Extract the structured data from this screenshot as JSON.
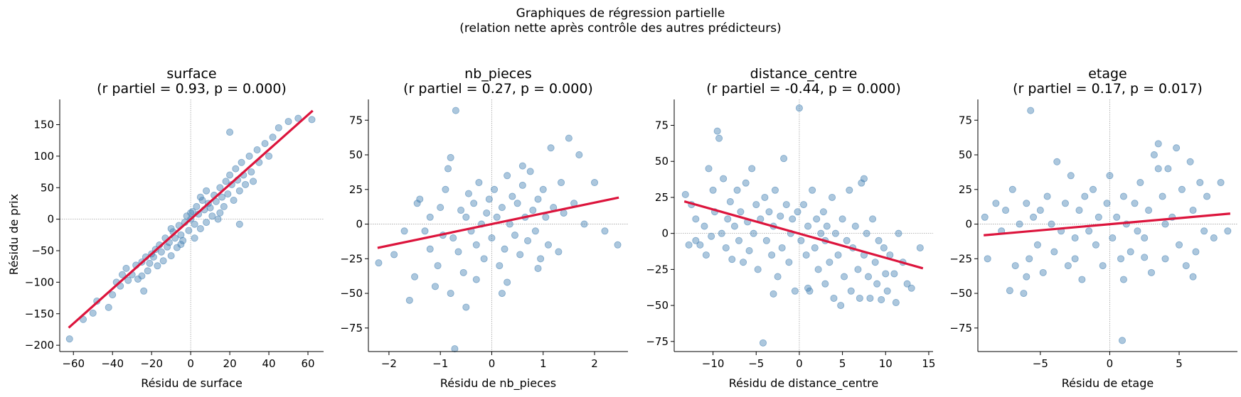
{
  "figure": {
    "suptitle_line1": "Graphiques de régression partielle",
    "suptitle_line2": "(relation nette après contrôle des autres prédicteurs)"
  },
  "colors": {
    "points": "#4682b4",
    "fit_line": "#dc143c",
    "reference_lines": "#a0a0a0"
  },
  "chart_data": [
    {
      "type": "scatter",
      "title": "surface",
      "subtitle": "(r partiel = 0.93, p = 0.000)",
      "xlabel": "Résidu de surface",
      "ylabel": "Résidu de prix",
      "xlim": [
        -67,
        68
      ],
      "ylim": [
        -210,
        190
      ],
      "xticks": [
        -60,
        -40,
        -20,
        0,
        20,
        40,
        60
      ],
      "yticks": [
        -200,
        -150,
        -100,
        -50,
        0,
        50,
        100,
        150
      ],
      "fit": {
        "x": [
          -62,
          62
        ],
        "y": [
          -171,
          171
        ]
      },
      "points": [
        [
          -62,
          -190
        ],
        [
          -55,
          -159
        ],
        [
          -50,
          -149
        ],
        [
          -42,
          -140
        ],
        [
          -40,
          -120
        ],
        [
          -38,
          -100
        ],
        [
          -36,
          -106
        ],
        [
          -35,
          -88
        ],
        [
          -33,
          -78
        ],
        [
          -32,
          -97
        ],
        [
          -30,
          -88
        ],
        [
          -28,
          -73
        ],
        [
          -27,
          -95
        ],
        [
          -25,
          -68
        ],
        [
          -24,
          -114
        ],
        [
          -23,
          -60
        ],
        [
          -22,
          -82
        ],
        [
          -21,
          -70
        ],
        [
          -20,
          -55
        ],
        [
          -19,
          -60
        ],
        [
          -18,
          -48
        ],
        [
          -17,
          -74
        ],
        [
          -16,
          -41
        ],
        [
          -15,
          -52
        ],
        [
          -14,
          -66
        ],
        [
          -13,
          -30
        ],
        [
          -12,
          -44
        ],
        [
          -11,
          -37
        ],
        [
          -10,
          -58
        ],
        [
          -9,
          -20
        ],
        [
          -8,
          -30
        ],
        [
          -7,
          -45
        ],
        [
          -6,
          -10
        ],
        [
          -5,
          -25
        ],
        [
          -4,
          -34
        ],
        [
          -3,
          -5
        ],
        [
          -2,
          5
        ],
        [
          -1,
          -18
        ],
        [
          0,
          0
        ],
        [
          1,
          12
        ],
        [
          2,
          -8
        ],
        [
          3,
          20
        ],
        [
          4,
          8
        ],
        [
          5,
          -15
        ],
        [
          6,
          30
        ],
        [
          7,
          15
        ],
        [
          8,
          45
        ],
        [
          9,
          25
        ],
        [
          10,
          18
        ],
        [
          11,
          5
        ],
        [
          12,
          38
        ],
        [
          13,
          28
        ],
        [
          14,
          0
        ],
        [
          15,
          50
        ],
        [
          16,
          35
        ],
        [
          17,
          20
        ],
        [
          18,
          60
        ],
        [
          19,
          40
        ],
        [
          20,
          70
        ],
        [
          21,
          55
        ],
        [
          22,
          30
        ],
        [
          23,
          80
        ],
        [
          24,
          62
        ],
        [
          25,
          45
        ],
        [
          26,
          90
        ],
        [
          27,
          70
        ],
        [
          28,
          55
        ],
        [
          30,
          100
        ],
        [
          31,
          75
        ],
        [
          32,
          60
        ],
        [
          34,
          110
        ],
        [
          35,
          90
        ],
        [
          38,
          120
        ],
        [
          40,
          100
        ],
        [
          42,
          130
        ],
        [
          45,
          145
        ],
        [
          50,
          155
        ],
        [
          55,
          160
        ],
        [
          62,
          158
        ],
        [
          20,
          138
        ],
        [
          -48,
          -130
        ],
        [
          -5,
          -40
        ],
        [
          0,
          10
        ],
        [
          2,
          -30
        ],
        [
          5,
          35
        ],
        [
          8,
          -5
        ],
        [
          -10,
          -15
        ],
        [
          -25,
          -90
        ],
        [
          15,
          10
        ],
        [
          25,
          -8
        ]
      ]
    },
    {
      "type": "scatter",
      "title": "nb_pieces",
      "subtitle": "(r partiel = 0.27, p = 0.000)",
      "xlabel": "Résidu de nb_pieces",
      "ylabel": "",
      "xlim": [
        -2.4,
        2.65
      ],
      "ylim": [
        -92,
        90
      ],
      "xticks": [
        -2,
        -1,
        0,
        1,
        2
      ],
      "yticks": [
        -75,
        -50,
        -25,
        0,
        25,
        50,
        75
      ],
      "fit": {
        "x": [
          -2.2,
          2.45
        ],
        "y": [
          -17,
          19
        ]
      },
      "points": [
        [
          -2.2,
          -28
        ],
        [
          -1.9,
          -22
        ],
        [
          -1.7,
          -5
        ],
        [
          -1.6,
          -55
        ],
        [
          -1.5,
          -38
        ],
        [
          -1.45,
          15
        ],
        [
          -1.4,
          18
        ],
        [
          -1.3,
          -5
        ],
        [
          -1.2,
          5
        ],
        [
          -1.1,
          -45
        ],
        [
          -1.05,
          -30
        ],
        [
          -1.0,
          12
        ],
        [
          -0.95,
          -8
        ],
        [
          -0.9,
          25
        ],
        [
          -0.85,
          40
        ],
        [
          -0.8,
          48
        ],
        [
          -0.75,
          -10
        ],
        [
          -0.72,
          -90
        ],
        [
          -0.7,
          82
        ],
        [
          -0.65,
          -20
        ],
        [
          -0.6,
          10
        ],
        [
          -0.55,
          -35
        ],
        [
          -0.5,
          5
        ],
        [
          -0.45,
          22
        ],
        [
          -0.4,
          -5
        ],
        [
          -0.35,
          15
        ],
        [
          -0.3,
          -15
        ],
        [
          -0.25,
          30
        ],
        [
          -0.2,
          0
        ],
        [
          -0.15,
          -25
        ],
        [
          -0.1,
          8
        ],
        [
          -0.05,
          18
        ],
        [
          0.0,
          -10
        ],
        [
          0.05,
          25
        ],
        [
          0.1,
          5
        ],
        [
          0.15,
          -30
        ],
        [
          0.2,
          12
        ],
        [
          0.25,
          -18
        ],
        [
          0.3,
          35
        ],
        [
          0.35,
          0
        ],
        [
          0.4,
          20
        ],
        [
          0.45,
          -8
        ],
        [
          0.5,
          15
        ],
        [
          0.55,
          -22
        ],
        [
          0.6,
          28
        ],
        [
          0.65,
          5
        ],
        [
          0.7,
          -12
        ],
        [
          0.75,
          38
        ],
        [
          0.8,
          10
        ],
        [
          0.85,
          -5
        ],
        [
          0.9,
          18
        ],
        [
          0.95,
          -25
        ],
        [
          1.0,
          25
        ],
        [
          1.05,
          5
        ],
        [
          1.1,
          -15
        ],
        [
          1.15,
          55
        ],
        [
          1.2,
          12
        ],
        [
          1.3,
          -20
        ],
        [
          1.35,
          30
        ],
        [
          1.4,
          8
        ],
        [
          1.5,
          62
        ],
        [
          1.6,
          15
        ],
        [
          1.7,
          50
        ],
        [
          1.8,
          0
        ],
        [
          2.0,
          30
        ],
        [
          2.2,
          -5
        ],
        [
          2.45,
          -15
        ],
        [
          -0.8,
          -50
        ],
        [
          0.3,
          -42
        ],
        [
          -1.2,
          -18
        ],
        [
          0.9,
          -32
        ],
        [
          -0.3,
          -40
        ],
        [
          0.6,
          42
        ],
        [
          -0.5,
          -60
        ],
        [
          0.2,
          -50
        ]
      ]
    },
    {
      "type": "scatter",
      "title": "distance_centre",
      "subtitle": "(r partiel = -0.44, p = 0.000)",
      "xlabel": "Résidu de distance_centre",
      "ylabel": "",
      "xlim": [
        -14.5,
        15.5
      ],
      "ylim": [
        -82,
        93
      ],
      "xticks": [
        -10,
        -5,
        0,
        5,
        10,
        15
      ],
      "yticks": [
        -75,
        -50,
        -25,
        0,
        25,
        50,
        75
      ],
      "fit": {
        "x": [
          -13.2,
          14.2
        ],
        "y": [
          22,
          -24
        ]
      },
      "points": [
        [
          -13.2,
          27
        ],
        [
          -12.8,
          -8
        ],
        [
          -12.5,
          20
        ],
        [
          -12,
          10
        ],
        [
          -11.5,
          -8
        ],
        [
          -11,
          5
        ],
        [
          -10.8,
          -15
        ],
        [
          -10.5,
          45
        ],
        [
          -10.2,
          -2
        ],
        [
          -10,
          30
        ],
        [
          -9.8,
          15
        ],
        [
          -9.5,
          71
        ],
        [
          -9.3,
          66
        ],
        [
          -9,
          0
        ],
        [
          -8.8,
          38
        ],
        [
          -8.5,
          -10
        ],
        [
          -8.3,
          10
        ],
        [
          -8,
          22
        ],
        [
          -7.8,
          -18
        ],
        [
          -7.5,
          5
        ],
        [
          -7.2,
          30
        ],
        [
          -7,
          -5
        ],
        [
          -6.8,
          15
        ],
        [
          -6.5,
          -20
        ],
        [
          -6.2,
          35
        ],
        [
          -6,
          8
        ],
        [
          -5.8,
          -12
        ],
        [
          -5.5,
          45
        ],
        [
          -5.3,
          0
        ],
        [
          -5,
          20
        ],
        [
          -4.8,
          -25
        ],
        [
          -4.5,
          10
        ],
        [
          -4.2,
          -76
        ],
        [
          -4,
          25
        ],
        [
          -3.8,
          -5
        ],
        [
          -3.5,
          15
        ],
        [
          -3.2,
          -15
        ],
        [
          -3,
          5
        ],
        [
          -2.8,
          30
        ],
        [
          -2.5,
          -30
        ],
        [
          -2.2,
          12
        ],
        [
          -2,
          -10
        ],
        [
          -1.8,
          52
        ],
        [
          -1.5,
          20
        ],
        [
          -1.2,
          -20
        ],
        [
          -1,
          0
        ],
        [
          -0.8,
          10
        ],
        [
          -0.5,
          -40
        ],
        [
          -0.2,
          15
        ],
        [
          0,
          87
        ],
        [
          0.2,
          -5
        ],
        [
          0.5,
          20
        ],
        [
          0.8,
          -15
        ],
        [
          1,
          5
        ],
        [
          1.2,
          -40
        ],
        [
          1.5,
          30
        ],
        [
          1.8,
          -10
        ],
        [
          2,
          10
        ],
        [
          2.2,
          -25
        ],
        [
          2.5,
          0
        ],
        [
          2.8,
          15
        ],
        [
          3,
          -35
        ],
        [
          3.2,
          5
        ],
        [
          3.5,
          -20
        ],
        [
          3.8,
          25
        ],
        [
          4,
          -45
        ],
        [
          4.2,
          0
        ],
        [
          4.5,
          -15
        ],
        [
          4.8,
          -50
        ],
        [
          5,
          10
        ],
        [
          5.2,
          -30
        ],
        [
          5.5,
          -5
        ],
        [
          5.8,
          30
        ],
        [
          6,
          -40
        ],
        [
          6.2,
          -10
        ],
        [
          6.5,
          5
        ],
        [
          6.8,
          -25
        ],
        [
          7,
          -45
        ],
        [
          7.2,
          35
        ],
        [
          7.5,
          -15
        ],
        [
          7.8,
          0
        ],
        [
          8,
          -30
        ],
        [
          8.2,
          -45
        ],
        [
          8.5,
          10
        ],
        [
          8.8,
          -20
        ],
        [
          9,
          -35
        ],
        [
          9.2,
          -5
        ],
        [
          9.5,
          -46
        ],
        [
          9.8,
          -10
        ],
        [
          10,
          -28
        ],
        [
          10.2,
          -40
        ],
        [
          10.5,
          -15
        ],
        [
          11,
          -28
        ],
        [
          11.2,
          -48
        ],
        [
          11.5,
          0
        ],
        [
          12,
          -20
        ],
        [
          12.5,
          -35
        ],
        [
          13,
          -38
        ],
        [
          14,
          -10
        ],
        [
          -12,
          -5
        ],
        [
          3,
          -5
        ],
        [
          -3,
          -42
        ],
        [
          1,
          -38
        ],
        [
          7.5,
          38
        ]
      ]
    },
    {
      "type": "scatter",
      "title": "etage",
      "subtitle": "(r partiel = 0.17, p = 0.017)",
      "xlabel": "Résidu de etage",
      "ylabel": "",
      "xlim": [
        -9.5,
        9.2
      ],
      "ylim": [
        -92,
        90
      ],
      "xticks": [
        -5,
        0,
        5
      ],
      "yticks": [
        -75,
        -50,
        -25,
        0,
        25,
        50,
        75
      ],
      "fit": {
        "x": [
          -9,
          8.6
        ],
        "y": [
          -8,
          7.5
        ]
      },
      "points": [
        [
          -9,
          5
        ],
        [
          -8.8,
          -25
        ],
        [
          -8.2,
          15
        ],
        [
          -7.8,
          -5
        ],
        [
          -7.5,
          10
        ],
        [
          -7.2,
          -48
        ],
        [
          -7,
          25
        ],
        [
          -6.8,
          -30
        ],
        [
          -6.5,
          0
        ],
        [
          -6.2,
          -50
        ],
        [
          -6,
          15
        ],
        [
          -5.8,
          -25
        ],
        [
          -5.7,
          82
        ],
        [
          -5.5,
          5
        ],
        [
          -5.2,
          -15
        ],
        [
          -5,
          10
        ],
        [
          -4.8,
          -35
        ],
        [
          -4.5,
          20
        ],
        [
          -4.2,
          0
        ],
        [
          -4,
          -20
        ],
        [
          -3.8,
          45
        ],
        [
          -3.5,
          -5
        ],
        [
          -3.2,
          15
        ],
        [
          -3,
          -30
        ],
        [
          -2.8,
          35
        ],
        [
          -2.5,
          -10
        ],
        [
          -2.2,
          10
        ],
        [
          -2,
          -40
        ],
        [
          -1.8,
          20
        ],
        [
          -1.5,
          -5
        ],
        [
          -1.2,
          25
        ],
        [
          -1,
          -15
        ],
        [
          -0.8,
          5
        ],
        [
          -0.5,
          -30
        ],
        [
          -0.2,
          15
        ],
        [
          0,
          35
        ],
        [
          0.2,
          -10
        ],
        [
          0.5,
          5
        ],
        [
          0.8,
          -25
        ],
        [
          0.9,
          -84
        ],
        [
          1,
          20
        ],
        [
          1.2,
          0
        ],
        [
          1.5,
          -20
        ],
        [
          1.8,
          15
        ],
        [
          2,
          -5
        ],
        [
          2.2,
          30
        ],
        [
          2.5,
          -10
        ],
        [
          2.8,
          10
        ],
        [
          3,
          -35
        ],
        [
          3.2,
          50
        ],
        [
          3.5,
          58
        ],
        [
          3.8,
          20
        ],
        [
          4,
          -25
        ],
        [
          4.2,
          40
        ],
        [
          4.5,
          5
        ],
        [
          4.8,
          55
        ],
        [
          5,
          -15
        ],
        [
          5.2,
          25
        ],
        [
          5.5,
          -30
        ],
        [
          5.8,
          45
        ],
        [
          6,
          10
        ],
        [
          6.2,
          -20
        ],
        [
          6.5,
          30
        ],
        [
          6.8,
          -5
        ],
        [
          7,
          20
        ],
        [
          7.5,
          -10
        ],
        [
          8,
          30
        ],
        [
          8.5,
          -5
        ],
        [
          -2.5,
          -25
        ],
        [
          2.5,
          -24
        ],
        [
          4,
          0
        ],
        [
          -6,
          -38
        ],
        [
          6,
          -38
        ],
        [
          3.5,
          40
        ],
        [
          1,
          -40
        ]
      ]
    }
  ]
}
